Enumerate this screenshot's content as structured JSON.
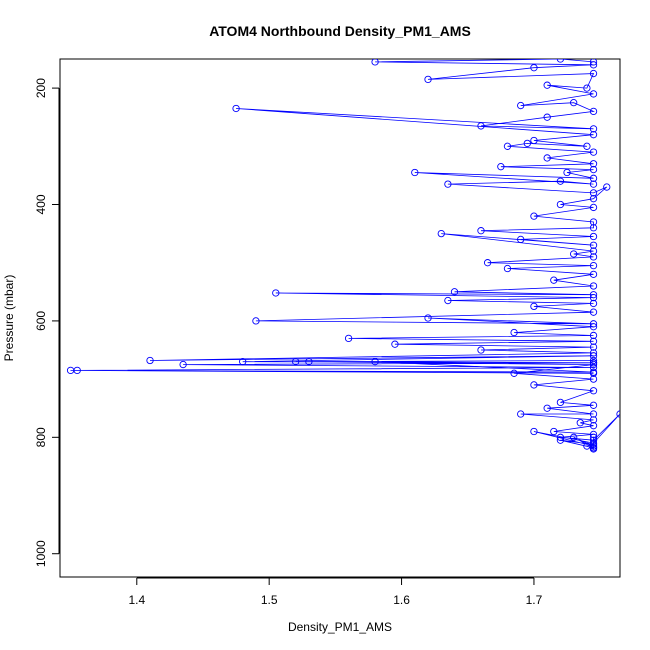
{
  "chart_data": {
    "type": "line",
    "title": "ATOM4 Northbound Density_PM1_AMS",
    "xlabel": "Density_PM1_AMS",
    "ylabel": "Pressure (mbar)",
    "xlim": [
      1.342,
      1.765
    ],
    "ylim": [
      1040,
      150
    ],
    "y_reversed": true,
    "x_ticks": [
      1.4,
      1.5,
      1.6,
      1.7
    ],
    "x_tick_labels": [
      "1.4",
      "1.5",
      "1.6",
      "1.7"
    ],
    "y_ticks": [
      200,
      400,
      600,
      800,
      1000
    ],
    "y_tick_labels": [
      "200",
      "400",
      "600",
      "800",
      "1000"
    ],
    "grid": false,
    "legend": "none",
    "series": [
      {
        "color": "#0000ff",
        "marker": "open-circle",
        "x": [
          1.745,
          1.72,
          1.58,
          1.745,
          1.7,
          1.62,
          1.745,
          1.74,
          1.71,
          1.745,
          1.69,
          1.73,
          1.745,
          1.71,
          1.66,
          1.745,
          1.475,
          1.745,
          1.7,
          1.74,
          1.695,
          1.68,
          1.745,
          1.71,
          1.745,
          1.675,
          1.745,
          1.725,
          1.745,
          1.61,
          1.745,
          1.72,
          1.635,
          1.745,
          1.755,
          1.745,
          1.72,
          1.745,
          1.7,
          1.745,
          1.745,
          1.66,
          1.745,
          1.69,
          1.745,
          1.63,
          1.745,
          1.73,
          1.745,
          1.665,
          1.745,
          1.68,
          1.745,
          1.715,
          1.745,
          1.64,
          1.745,
          1.505,
          1.745,
          1.635,
          1.745,
          1.7,
          1.745,
          1.49,
          1.745,
          1.62,
          1.745,
          1.685,
          1.745,
          1.56,
          1.745,
          1.595,
          1.745,
          1.66,
          1.745,
          1.41,
          1.745,
          1.48,
          1.745,
          1.435,
          1.745,
          1.355,
          1.745,
          1.35,
          1.745,
          1.58,
          1.745,
          1.52,
          1.745,
          1.53,
          1.745,
          1.685,
          1.745,
          1.7,
          1.745,
          1.72,
          1.745,
          1.71,
          1.745,
          1.69,
          1.745,
          1.735,
          1.745,
          1.715,
          1.745,
          1.72,
          1.745,
          1.765,
          1.745,
          1.7,
          1.745,
          1.73,
          1.745,
          1.72,
          1.745,
          1.74,
          1.745,
          1.745,
          1.745,
          1.745
        ],
        "y": [
          155,
          150,
          155,
          160,
          165,
          185,
          175,
          200,
          195,
          210,
          230,
          225,
          240,
          250,
          265,
          270,
          235,
          280,
          290,
          300,
          295,
          300,
          310,
          320,
          330,
          335,
          340,
          345,
          355,
          345,
          365,
          360,
          365,
          380,
          370,
          390,
          400,
          405,
          420,
          430,
          440,
          445,
          455,
          460,
          470,
          450,
          480,
          485,
          490,
          500,
          505,
          510,
          520,
          530,
          540,
          550,
          555,
          552,
          560,
          565,
          570,
          575,
          585,
          600,
          605,
          595,
          610,
          620,
          625,
          630,
          635,
          640,
          645,
          650,
          655,
          668,
          660,
          670,
          672,
          675,
          680,
          685,
          690,
          685,
          688,
          670,
          672,
          670,
          668,
          670,
          675,
          690,
          700,
          710,
          720,
          740,
          745,
          750,
          760,
          760,
          770,
          775,
          780,
          790,
          795,
          800,
          805,
          760,
          810,
          790,
          815,
          800,
          818,
          805,
          812,
          815,
          820,
          800,
          815,
          818
        ]
      }
    ]
  }
}
